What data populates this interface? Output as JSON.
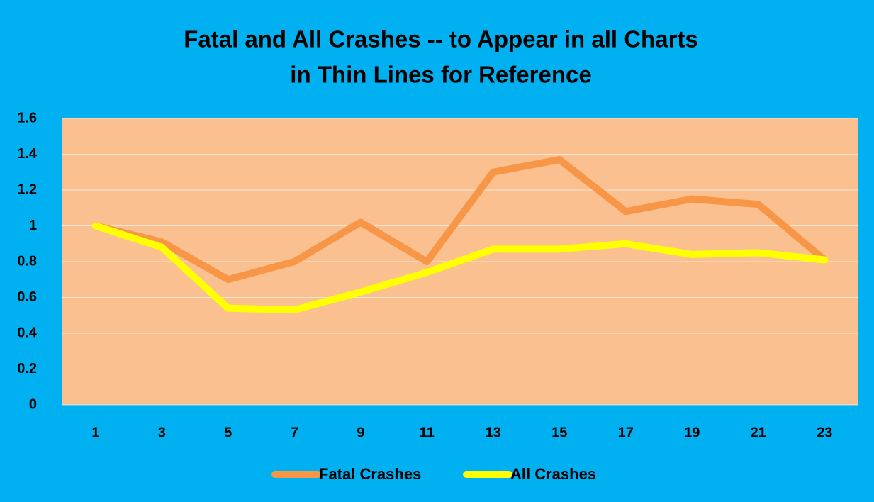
{
  "chart_data": {
    "type": "line",
    "title": [
      "Fatal and All Crashes -- to Appear in all Charts",
      "in Thin Lines for Reference"
    ],
    "categories": [
      1,
      3,
      5,
      7,
      9,
      11,
      13,
      15,
      17,
      19,
      21,
      23
    ],
    "series": [
      {
        "name": "Fatal Crashes",
        "color": "#f79646",
        "values": [
          1.0,
          0.91,
          0.7,
          0.8,
          1.02,
          0.8,
          1.3,
          1.37,
          1.08,
          1.15,
          1.12,
          0.81
        ]
      },
      {
        "name": "All Crashes",
        "color": "#ffff00",
        "values": [
          1.0,
          0.88,
          0.54,
          0.53,
          0.63,
          0.74,
          0.87,
          0.87,
          0.9,
          0.84,
          0.85,
          0.81
        ]
      }
    ],
    "ylim": [
      0,
      1.6
    ],
    "yticks": [
      0,
      0.2,
      0.4,
      0.6,
      0.8,
      1,
      1.2,
      1.4,
      1.6
    ],
    "grid": true,
    "legend": "bottom"
  }
}
